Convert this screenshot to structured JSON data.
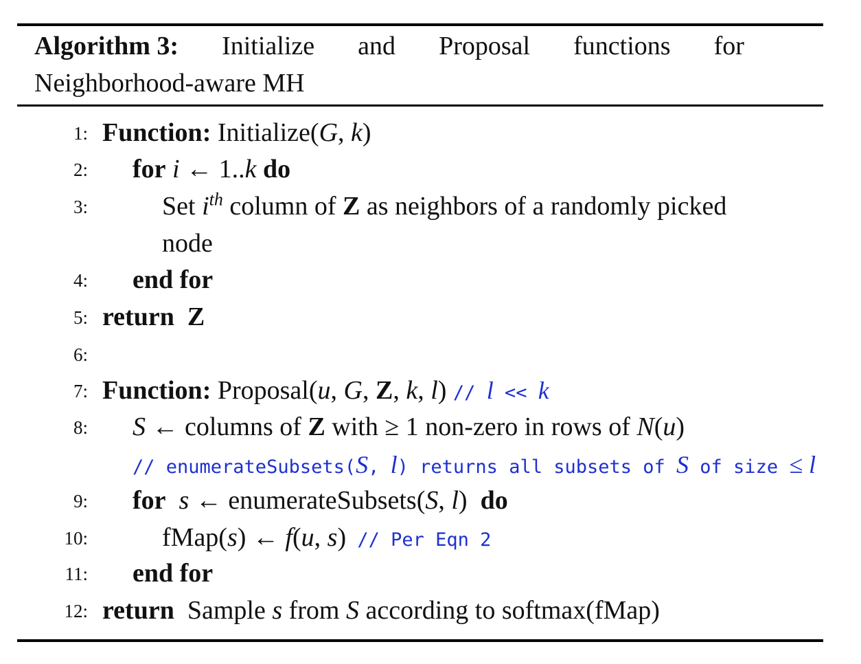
{
  "caption": {
    "label": "Algorithm 3:",
    "line1_words": [
      "Initialize",
      "and",
      "Proposal",
      "functions",
      "for"
    ],
    "line2": "Neighborhood-aware MH"
  },
  "line_numbers": [
    "1:",
    "2:",
    "3:",
    "4:",
    "5:",
    "6:",
    "7:",
    "8:",
    "9:",
    "10:",
    "11:",
    "12:"
  ],
  "keywords": {
    "function": "Function:",
    "for": "for",
    "do": "do",
    "end_for": "end for",
    "return": "return"
  },
  "lines": {
    "l1": {
      "name": "Initialize(",
      "args_a": "G",
      "sep": ", ",
      "args_b": "k",
      "close": ")"
    },
    "l2": {
      "var": "i",
      "arrow": " ← 1..",
      "end": "k"
    },
    "l3": {
      "set": "Set ",
      "i": "i",
      "th": "th",
      "rest_a": " column of ",
      "Z": "Z",
      "rest_b": " as neighbors of a randomly picked",
      "cont": "node"
    },
    "l5": {
      "Z": "Z"
    },
    "l7": {
      "name": "Proposal(",
      "u": "u",
      "c1": ", ",
      "G": "G",
      "c2": ", ",
      "Z": "Z",
      "c3": ", ",
      "k": "k",
      "c4": ", ",
      "l": "l",
      "close": ")",
      "comment_prefix": "// ",
      "comment_l": "l",
      "comment_op": " << ",
      "comment_k": "k"
    },
    "l8": {
      "S": "S",
      "a": " ← columns of ",
      "Z": "Z",
      "b": " with ≥ 1 non-zero in rows of ",
      "N": "N",
      "po": "(",
      "u": "u",
      "pc": ")",
      "comment_a": "// enumerateSubsets(",
      "comment_S": "S",
      "comment_b": ", ",
      "comment_l": "l",
      "comment_c": ") returns all subsets of ",
      "comment_S2": "S",
      "comment_d": " of size ",
      "comment_le": "≤",
      "comment_l2": " l"
    },
    "l9": {
      "s": "s",
      "a": " ← enumerateSubsets(",
      "S": "S",
      "b": ", ",
      "l": "l",
      "c": ")"
    },
    "l10": {
      "a": "fMap(",
      "s": "s",
      "b": ") ← ",
      "f": "f",
      "c": "(",
      "u": "u",
      "d": ", ",
      "s2": "s",
      "e": ")",
      "comment": " // Per Eqn 2"
    },
    "l12": {
      "a": "Sample ",
      "s": "s",
      "b": " from ",
      "S": "S",
      "c": " according to softmax(fMap)"
    }
  }
}
